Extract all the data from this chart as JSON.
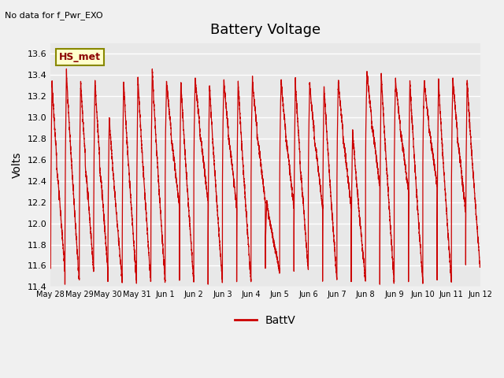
{
  "title": "Battery Voltage",
  "note": "No data for f_Pwr_EXO",
  "ylabel": "Volts",
  "legend_label": "BattV",
  "line_color": "#cc0000",
  "plot_bg_color": "#e8e8e8",
  "fig_bg_color": "#f0f0f0",
  "ylim": [
    11.4,
    13.7
  ],
  "yticks": [
    11.4,
    11.6,
    11.8,
    12.0,
    12.2,
    12.4,
    12.6,
    12.8,
    13.0,
    13.2,
    13.4,
    13.6
  ],
  "hs_met_label": "HS_met",
  "hs_met_bg": "#ffffcc",
  "hs_met_border": "#888800",
  "x_tick_labels": [
    "May 28",
    "May 29",
    "May 30",
    "May 31",
    "Jun 1",
    "Jun 2",
    "Jun 3",
    "Jun 4",
    "Jun 5",
    "Jun 6",
    "Jun 7",
    "Jun 8",
    "Jun 9",
    "Jun 10",
    "Jun 11",
    "Jun 12"
  ],
  "x_tick_positions": [
    0,
    1,
    2,
    3,
    4,
    5,
    6,
    7,
    8,
    9,
    10,
    11,
    12,
    13,
    14,
    15
  ]
}
